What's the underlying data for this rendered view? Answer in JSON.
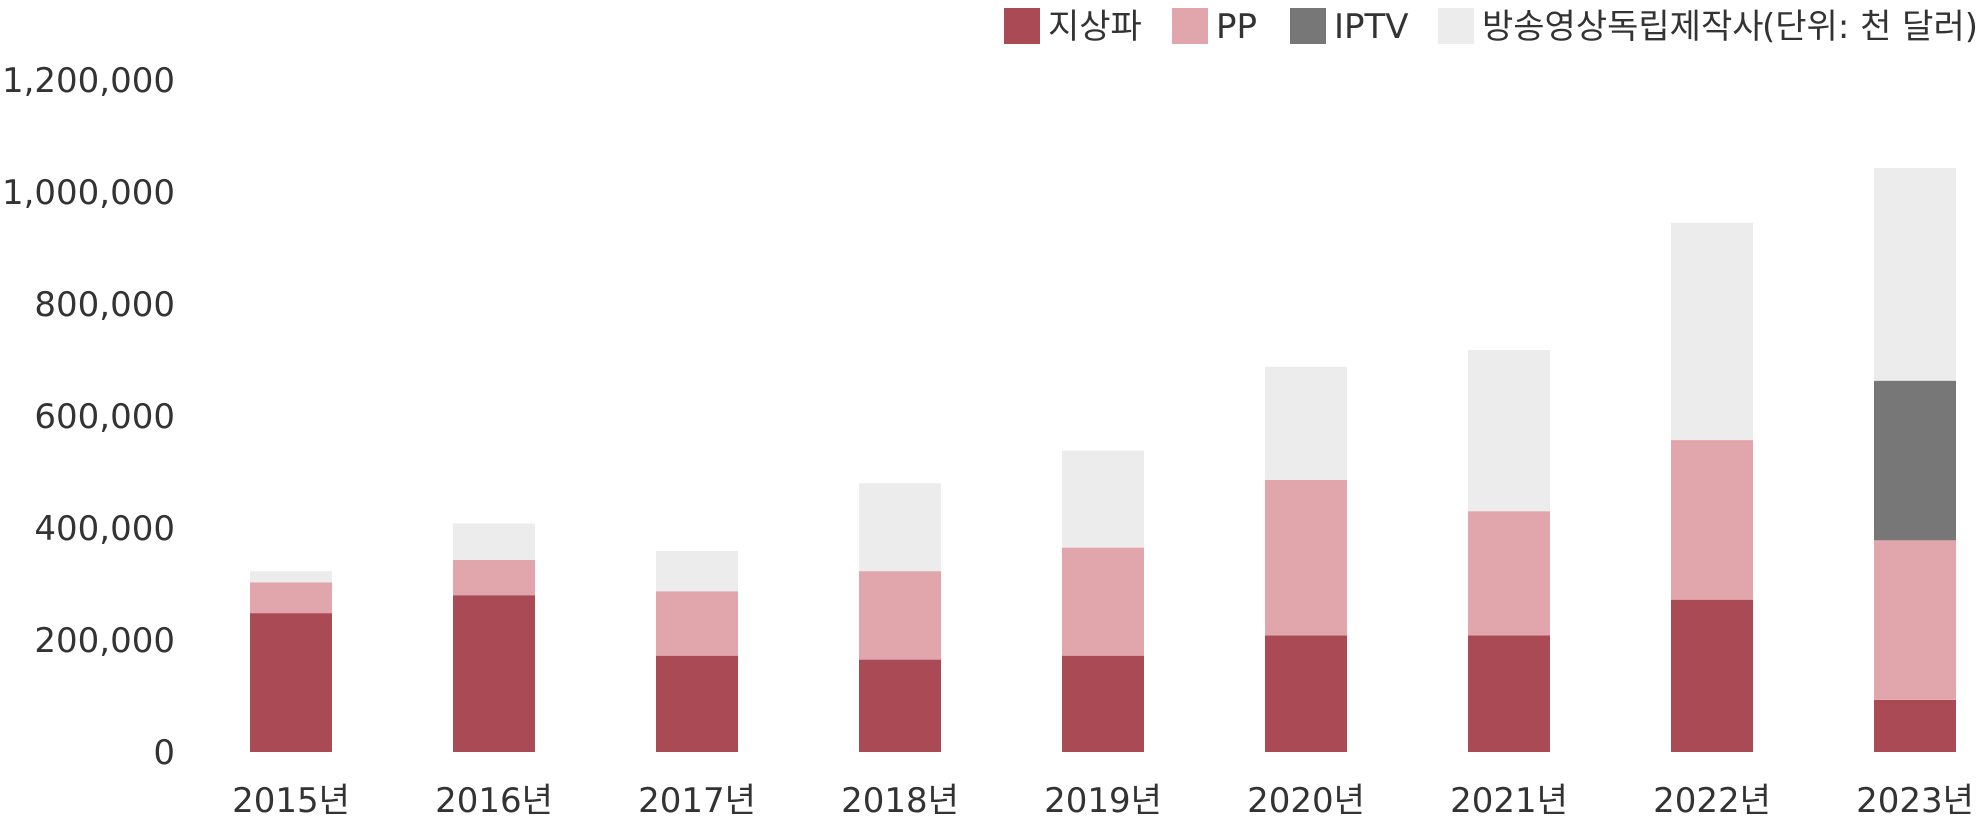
{
  "chart_data": {
    "type": "bar",
    "stacked": true,
    "categories": [
      "2015년",
      "2016년",
      "2017년",
      "2018년",
      "2019년",
      "2020년",
      "2021년",
      "2022년",
      "2023년"
    ],
    "series": [
      {
        "name": "지상파",
        "color": "#aa4a55",
        "values": [
          248000,
          280000,
          172000,
          165000,
          172000,
          208000,
          208000,
          272000,
          93000
        ]
      },
      {
        "name": "PP",
        "color": "#e0a6ac",
        "values": [
          55000,
          63000,
          115000,
          158000,
          193000,
          278000,
          222000,
          285000,
          285000
        ]
      },
      {
        "name": "IPTV",
        "color": "#777777",
        "values": [
          0,
          0,
          0,
          0,
          0,
          0,
          0,
          0,
          285000
        ]
      },
      {
        "name": "방송영상독립제작사",
        "color": "#ececec",
        "values": [
          20000,
          65000,
          72000,
          157000,
          173000,
          202000,
          288000,
          388000,
          380000
        ]
      }
    ],
    "unit_label": "(단위: 천 달러)",
    "ylim": [
      0,
      1200000
    ],
    "yticks": [
      "1,200,000",
      "1,000,000",
      "800,000",
      "600,000",
      "400,000",
      "200,000",
      "0"
    ],
    "ytick_values": [
      1200000,
      1000000,
      800000,
      600000,
      400000,
      200000,
      0
    ],
    "grid": false,
    "legend_position": "top-right"
  }
}
